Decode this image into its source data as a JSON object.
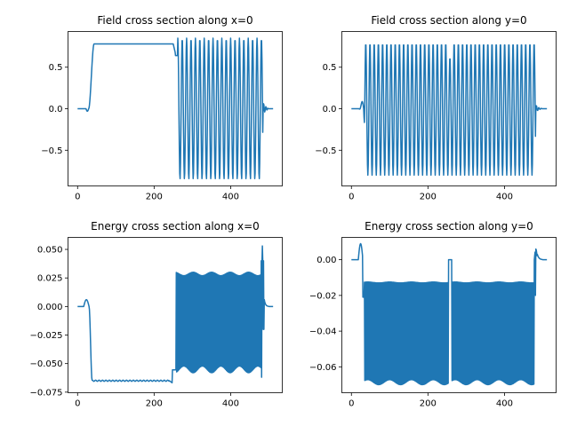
{
  "figure": {
    "line_color": "#1f77b4"
  },
  "chart_data": [
    {
      "type": "line",
      "title": "Field cross section along x=0",
      "xlim": [
        -25,
        535
      ],
      "ylim": [
        -0.93,
        0.93
      ],
      "xticks": [
        {
          "value": 0,
          "label": "0"
        },
        {
          "value": 200,
          "label": "200"
        },
        {
          "value": 400,
          "label": "400"
        }
      ],
      "yticks": [
        {
          "value": 0.5,
          "label": "0.5"
        },
        {
          "value": 0.0,
          "label": "0.0"
        },
        {
          "value": -0.5,
          "label": "−0.5"
        }
      ],
      "signal": {
        "kind": "field-x",
        "n": 512,
        "plateau": 0.78,
        "amplitude": 0.85,
        "period": 11.5
      }
    },
    {
      "type": "line",
      "title": "Field cross section along y=0",
      "xlim": [
        -25,
        535
      ],
      "ylim": [
        -0.93,
        0.93
      ],
      "xticks": [
        {
          "value": 0,
          "label": "0"
        },
        {
          "value": 200,
          "label": "200"
        },
        {
          "value": 400,
          "label": "400"
        }
      ],
      "yticks": [
        {
          "value": 0.5,
          "label": "0.5"
        },
        {
          "value": 0.0,
          "label": "0.0"
        },
        {
          "value": -0.5,
          "label": "−0.5"
        }
      ],
      "signal": {
        "kind": "field-y",
        "n": 512,
        "amplitude": 0.8,
        "period": 11.0
      }
    },
    {
      "type": "line",
      "title": "Energy cross section along x=0",
      "xlim": [
        -25,
        535
      ],
      "ylim": [
        -0.0755,
        0.0605
      ],
      "xticks": [
        {
          "value": 0,
          "label": "0"
        },
        {
          "value": 200,
          "label": "200"
        },
        {
          "value": 400,
          "label": "400"
        }
      ],
      "yticks": [
        {
          "value": 0.05,
          "label": "0.050"
        },
        {
          "value": 0.025,
          "label": "0.025"
        },
        {
          "value": 0.0,
          "label": "0.000"
        },
        {
          "value": -0.025,
          "label": "−0.025"
        },
        {
          "value": -0.05,
          "label": "−0.050"
        },
        {
          "value": -0.075,
          "label": "−0.075"
        }
      ],
      "signal": {
        "kind": "energy-x",
        "n": 512,
        "plateau": -0.065,
        "high": 0.03,
        "low": -0.058,
        "period": 5.5
      }
    },
    {
      "type": "line",
      "title": "Energy cross section along y=0",
      "xlim": [
        -25,
        535
      ],
      "ylim": [
        -0.0745,
        0.0125
      ],
      "xticks": [
        {
          "value": 0,
          "label": "0"
        },
        {
          "value": 200,
          "label": "200"
        },
        {
          "value": 400,
          "label": "400"
        }
      ],
      "yticks": [
        {
          "value": 0.0,
          "label": "0.00"
        },
        {
          "value": -0.02,
          "label": "−0.02"
        },
        {
          "value": -0.04,
          "label": "−0.04"
        },
        {
          "value": -0.06,
          "label": "−0.06"
        }
      ],
      "signal": {
        "kind": "energy-y",
        "n": 512,
        "high": -0.013,
        "low": -0.07,
        "period": 5.5
      }
    }
  ]
}
